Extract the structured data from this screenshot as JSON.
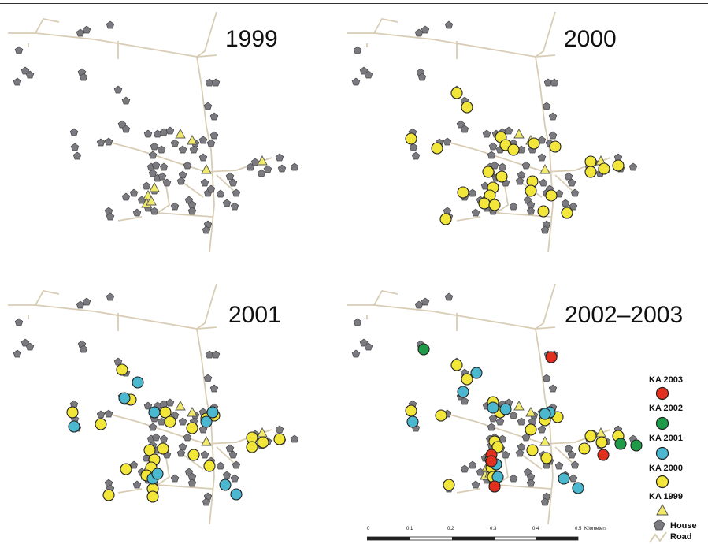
{
  "panels": [
    {
      "id": "p1999",
      "year": "1999",
      "kas": []
    },
    {
      "id": "p2000",
      "year": "2000",
      "kas": []
    },
    {
      "id": "p2001",
      "year": "2001",
      "kas": []
    },
    {
      "id": "p2002",
      "year": "2002–2003",
      "kas": []
    }
  ],
  "legend": {
    "ka2003": "KA 2003",
    "ka2002": "KA 2002",
    "ka2001": "KA 2001",
    "ka2000": "KA 2000",
    "ka1999": "KA 1999",
    "house": "House",
    "road": "Road"
  },
  "scale": {
    "ticks": [
      "0",
      "0.1",
      "0.2",
      "0.3",
      "0.4",
      "0.5"
    ],
    "unit": "Kilometers"
  },
  "colors": {
    "road": "#d8ccb4",
    "house": "#7a7a80",
    "ka1999": "#f1e96a",
    "ka2000": "#f3e63a",
    "ka2001": "#4bb8cf",
    "ka2002": "#1e9a48",
    "ka2003": "#e2301f"
  }
}
